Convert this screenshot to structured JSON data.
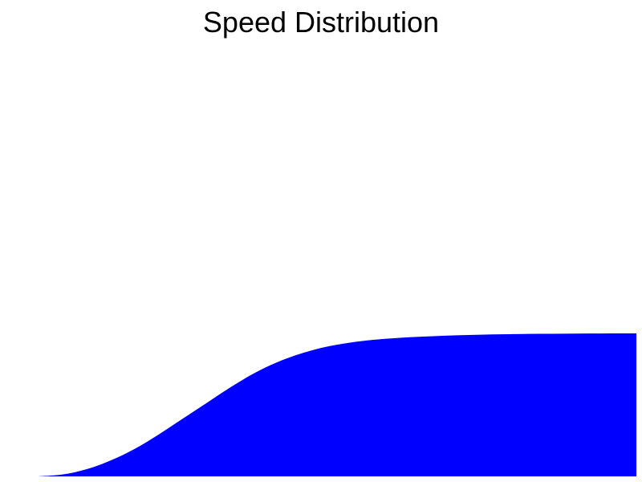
{
  "chart_data": {
    "type": "area",
    "title": "Speed Distribution",
    "xlabel": "",
    "ylabel": "",
    "grid": false,
    "axes_visible": false,
    "fill_color": "#0000ff",
    "x": [
      0,
      0.04,
      0.08,
      0.12,
      0.16,
      0.2,
      0.24,
      0.28,
      0.32,
      0.36,
      0.4,
      0.44,
      0.48,
      0.52,
      0.56,
      0.6,
      0.64,
      0.68,
      0.72,
      0.76,
      0.8,
      0.84,
      0.88,
      0.92,
      0.96,
      1.0
    ],
    "y": [
      0,
      0.013,
      0.05,
      0.11,
      0.19,
      0.29,
      0.4,
      0.51,
      0.62,
      0.72,
      0.8,
      0.86,
      0.905,
      0.935,
      0.955,
      0.968,
      0.977,
      0.984,
      0.989,
      0.993,
      0.995,
      0.997,
      0.998,
      0.999,
      1.0,
      1.0
    ],
    "xlim": [
      0,
      1
    ],
    "ylim": [
      0,
      1
    ]
  }
}
